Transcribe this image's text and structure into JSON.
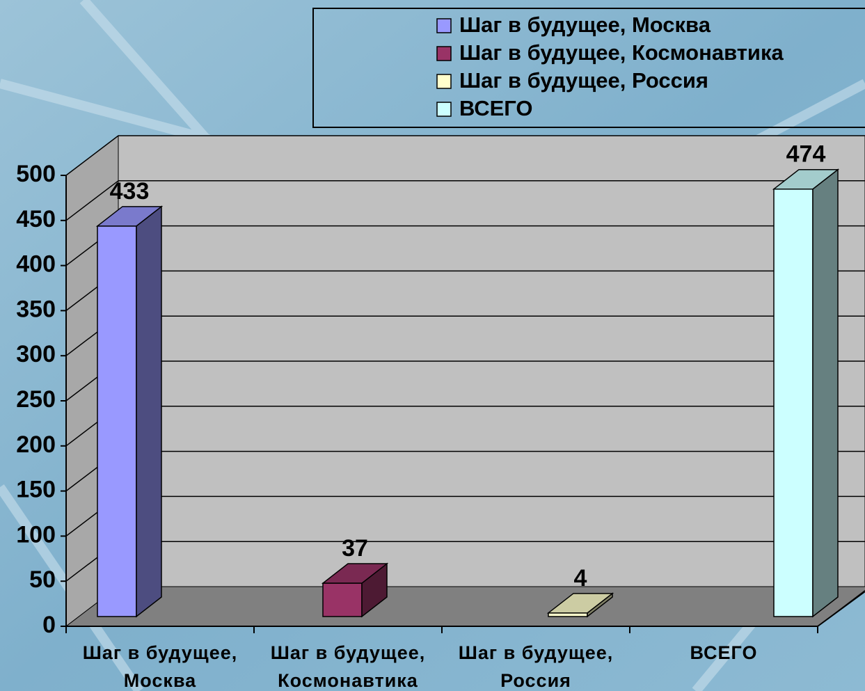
{
  "chart_data": {
    "type": "bar3d",
    "categories": [
      "Шаг в будущее, Москва",
      "Шаг в будущее, Космонавтика",
      "Шаг в будущее, Россия",
      "ВСЕГО"
    ],
    "values": [
      433,
      37,
      4,
      474
    ],
    "colors": [
      "#9999ff",
      "#993366",
      "#ffffcc",
      "#ccffff"
    ],
    "ylim": [
      0,
      500
    ],
    "yticks": [
      0,
      50,
      100,
      150,
      200,
      250,
      300,
      350,
      400,
      450,
      500
    ],
    "grid": true,
    "legend": "top-right"
  }
}
